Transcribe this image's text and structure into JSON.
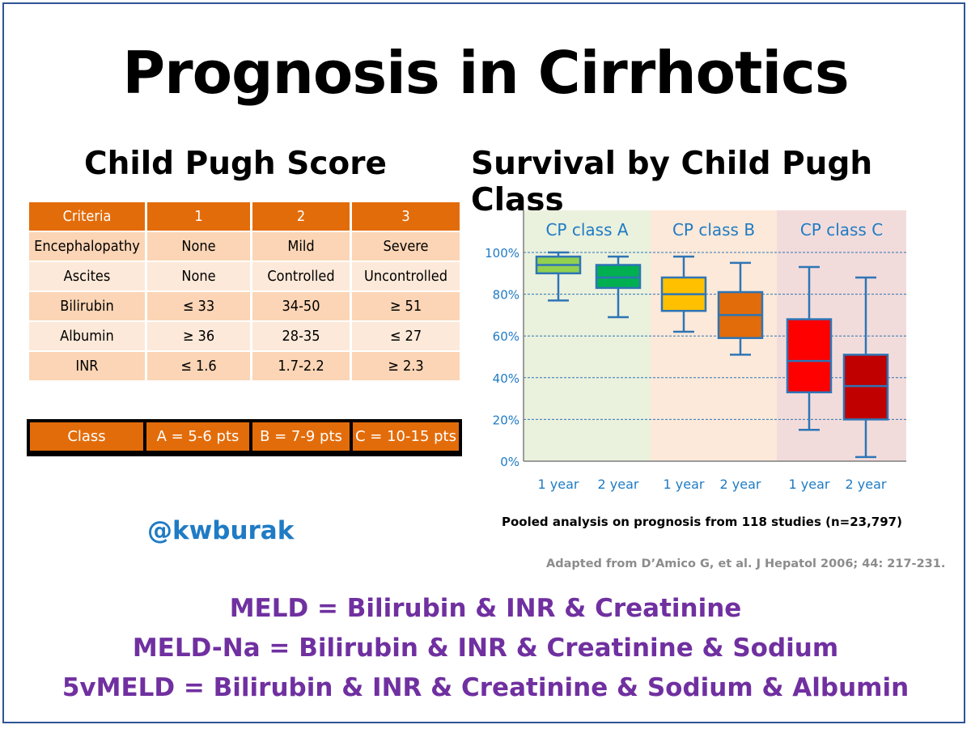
{
  "title": "Prognosis in Cirrhotics",
  "left_heading": "Child Pugh Score",
  "right_heading": "Survival by Child Pugh Class",
  "table": {
    "headers": [
      "Criteria",
      "1",
      "2",
      "3"
    ],
    "rows": [
      [
        "Encephalopathy",
        "None",
        "Mild",
        "Severe"
      ],
      [
        "Ascites",
        "None",
        "Controlled",
        "Uncontrolled"
      ],
      [
        "Bilirubin",
        "≤ 33",
        "34-50",
        "≥ 51"
      ],
      [
        "Albumin",
        "≥ 36",
        "28-35",
        "≤ 27"
      ],
      [
        "INR",
        "≤ 1.6",
        "1.7-2.2",
        "≥ 2.3"
      ]
    ],
    "class_row": [
      "Class",
      "A = 5-6 pts",
      "B = 7-9 pts",
      "C = 10-15 pts"
    ],
    "header_color": "#e36c0a",
    "row_colors": [
      "#fbd5b5",
      "#fde9d9"
    ]
  },
  "handle": "@kwburak",
  "caption": "Pooled analysis on prognosis from 118 studies (n=23,797)",
  "citation": "Adapted from D’Amico G, et al. J Hepatol 2006; 44: 217-231.",
  "meld_lines": [
    "MELD = Bilirubin & INR & Creatinine",
    "MELD-Na = Bilirubin & INR & Creatinine & Sodium",
    "5vMELD = Bilirubin & INR & Creatinine & Sodium & Albumin"
  ],
  "chart_data": {
    "type": "box",
    "title": "Survival by Child Pugh Class",
    "y_ticks": [
      "0%",
      "20%",
      "40%",
      "60%",
      "80%",
      "100%"
    ],
    "ylim": [
      0,
      105
    ],
    "grid": true,
    "groups": [
      {
        "label": "CP class A",
        "bg": "#eaf1dd"
      },
      {
        "label": "CP class B",
        "bg": "#fde9d9"
      },
      {
        "label": "CP class C",
        "bg": "#f2dcdb"
      }
    ],
    "boxes": [
      {
        "group": 0,
        "x_label": "1 year",
        "min": 77,
        "q1": 90,
        "median": 94,
        "q3": 98,
        "max": 100,
        "color": "#92d050"
      },
      {
        "group": 0,
        "x_label": "2 year",
        "min": 69,
        "q1": 83,
        "median": 88,
        "q3": 94,
        "max": 98,
        "color": "#00b050"
      },
      {
        "group": 1,
        "x_label": "1 year",
        "min": 62,
        "q1": 72,
        "median": 80,
        "q3": 88,
        "max": 98,
        "color": "#ffc000"
      },
      {
        "group": 1,
        "x_label": "2 year",
        "min": 51,
        "q1": 59,
        "median": 70,
        "q3": 81,
        "max": 95,
        "color": "#e36c0a"
      },
      {
        "group": 2,
        "x_label": "1 year",
        "min": 15,
        "q1": 33,
        "median": 48,
        "q3": 68,
        "max": 93,
        "color": "#ff0000"
      },
      {
        "group": 2,
        "x_label": "2 year",
        "min": 2,
        "q1": 20,
        "median": 36,
        "q3": 51,
        "max": 88,
        "color": "#c00000"
      }
    ],
    "whisker_color": "#2e75b6",
    "label_color": "#1f7bc4"
  }
}
